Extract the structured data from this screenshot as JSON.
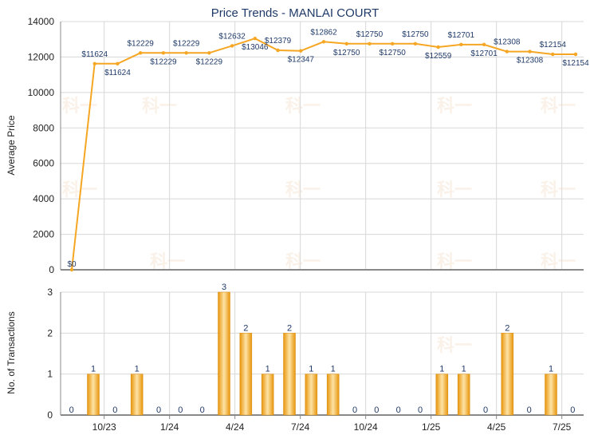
{
  "colors": {
    "line": "#f5a623",
    "bar_dark": "#e8960c",
    "bar_light": "#fde3a6",
    "grid": "#d8d8d8",
    "axis": "#888888",
    "title": "#1f3a68"
  },
  "watermark": "科一",
  "chart_data": [
    {
      "type": "line",
      "title": "Price Trends - MANLAI COURT",
      "xlabel": "",
      "ylabel": "Average Price",
      "ylim": [
        0,
        14000
      ],
      "yticks": [
        0,
        2000,
        4000,
        6000,
        8000,
        10000,
        12000,
        14000
      ],
      "grid": true,
      "series": [
        {
          "values": [
            0,
            11624,
            11624,
            12229,
            12229,
            12229,
            12229,
            12632,
            13046,
            12379,
            12347,
            12862,
            12750,
            12750,
            12750,
            12750,
            12559,
            12701,
            12701,
            12308,
            12308,
            12154,
            12154
          ],
          "labels": [
            "$0",
            "$11624",
            "$11624",
            "$12229",
            "$12229",
            "$12229",
            "$12229",
            "$12632",
            "$13046",
            "$12379",
            "$12347",
            "$12862",
            "$12750",
            "$12750",
            "$12750",
            "$12750",
            "$12559",
            "$12701",
            "$12701",
            "$12308",
            "$12308",
            "$12154",
            "$12154"
          ]
        }
      ]
    },
    {
      "type": "bar",
      "xlabel": "",
      "ylabel": "No. of Transactions",
      "ylim": [
        0,
        3
      ],
      "yticks": [
        0,
        1,
        2,
        3
      ],
      "grid": true,
      "values": [
        0,
        1,
        0,
        1,
        0,
        0,
        0,
        3,
        2,
        1,
        2,
        1,
        1,
        0,
        0,
        0,
        0,
        1,
        1,
        0,
        2,
        0,
        1,
        0
      ],
      "xtick_labels": [
        "10/23",
        "1/24",
        "4/24",
        "7/24",
        "10/24",
        "1/25",
        "4/25",
        "7/25"
      ]
    }
  ]
}
